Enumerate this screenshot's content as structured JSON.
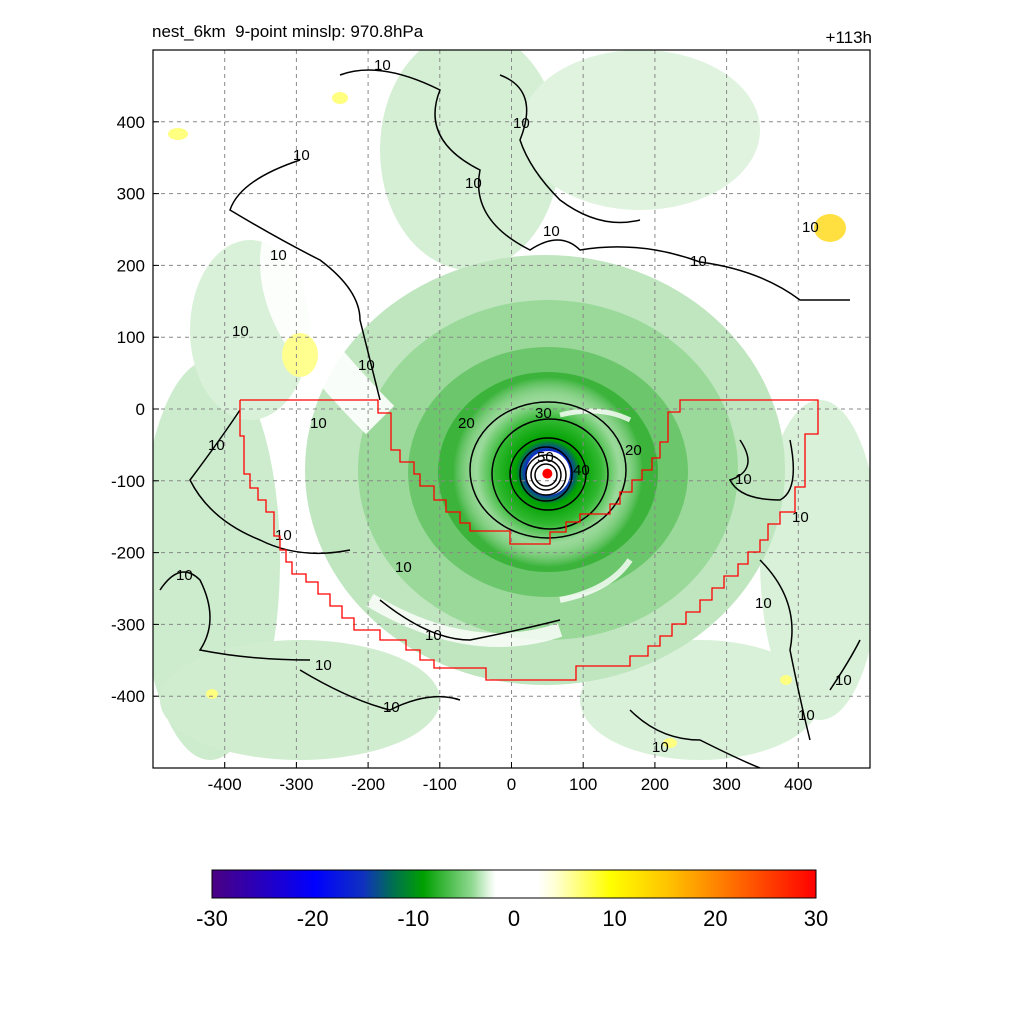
{
  "title": {
    "left": "nest_6km  9-point minslp: 970.8hPa",
    "right": "+113h"
  },
  "axes": {
    "x_range": [
      -500,
      500
    ],
    "y_range": [
      -500,
      500
    ],
    "x_ticks": [
      -400,
      -300,
      -200,
      -100,
      0,
      100,
      200,
      300,
      400
    ],
    "y_ticks": [
      400,
      300,
      200,
      100,
      0,
      -100,
      -200,
      -300,
      -400
    ],
    "grid": "dashed"
  },
  "storm_center": {
    "x": 50,
    "y": -90
  },
  "contour_labels": [
    "10",
    "20",
    "30",
    "40",
    "50"
  ],
  "colorbar": {
    "range": [
      -30,
      30
    ],
    "ticks": [
      "-30",
      "-20",
      "-10",
      "0",
      "10",
      "20",
      "30"
    ],
    "colors_negative": [
      "#4b0082",
      "#0000ff",
      "#008b8b",
      "#00aa00",
      "#a8e0a8"
    ],
    "colors_positive": [
      "#ffffe0",
      "#ffff00",
      "#ffb000",
      "#ff0000"
    ]
  },
  "domain_outline_color": "#ff0000"
}
